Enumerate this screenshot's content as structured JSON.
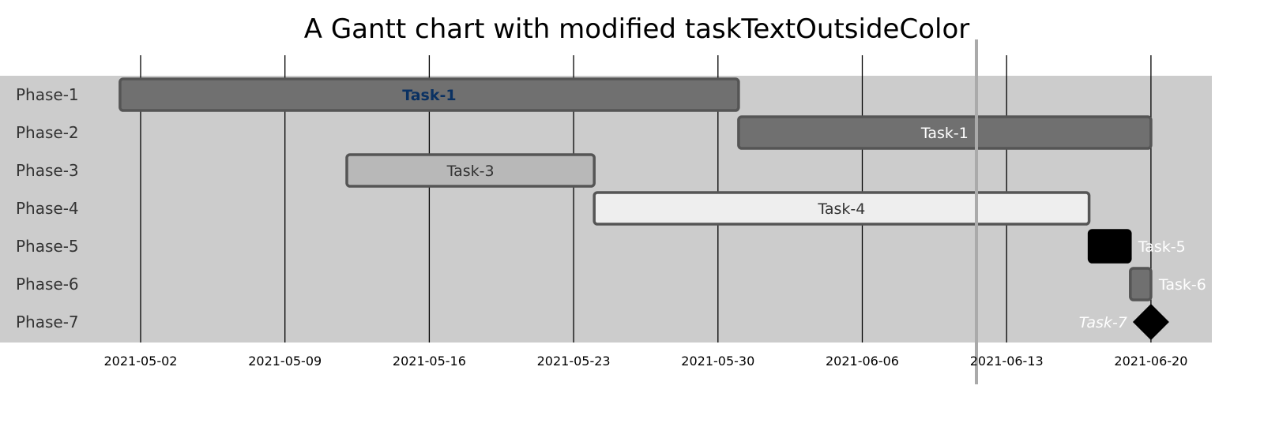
{
  "chart_data": {
    "type": "gantt",
    "title": "A Gantt chart with modified taskTextOutsideColor",
    "sections": [
      "Phase-1",
      "Phase-2",
      "Phase-3",
      "Phase-4",
      "Phase-5",
      "Phase-6",
      "Phase-7"
    ],
    "x_ticks": [
      "2021-05-02",
      "2021-05-09",
      "2021-05-16",
      "2021-05-23",
      "2021-05-30",
      "2021-06-06",
      "2021-06-13",
      "2021-06-20"
    ],
    "today_marker": "2021-06-11",
    "tasks": [
      {
        "section": "Phase-1",
        "label": "Task-1",
        "start": "2021-05-01",
        "end": "2021-05-31",
        "status": "active critical",
        "fill": "#707070",
        "text_color": "#0a3162",
        "label_placement": "inside"
      },
      {
        "section": "Phase-2",
        "label": "Task-1",
        "start": "2021-05-31",
        "end": "2021-06-20",
        "status": "done critical",
        "fill": "#707070",
        "text_color": "#ffffff",
        "label_placement": "inside"
      },
      {
        "section": "Phase-3",
        "label": "Task-3",
        "start": "2021-05-12",
        "end": "2021-05-24",
        "status": "done",
        "fill": "#b8b8b8",
        "text_color": "#333333",
        "label_placement": "inside"
      },
      {
        "section": "Phase-4",
        "label": "Task-4",
        "start": "2021-05-24",
        "end": "2021-06-17",
        "status": "active",
        "fill": "#eeeeee",
        "text_color": "#333333",
        "label_placement": "inside"
      },
      {
        "section": "Phase-5",
        "label": "Task-5",
        "start": "2021-06-17",
        "end": "2021-06-19",
        "status": "default",
        "fill": "#000000",
        "text_color": "#ffffff",
        "label_placement": "outside"
      },
      {
        "section": "Phase-6",
        "label": "Task-6",
        "start": "2021-06-19",
        "end": "2021-06-20",
        "status": "done",
        "fill": "#707070",
        "text_color": "#ffffff",
        "label_placement": "outside"
      },
      {
        "section": "Phase-7",
        "label": "Task-7",
        "start": "2021-06-20",
        "end": "2021-06-20",
        "status": "milestone",
        "fill": "#000000",
        "text_color": "#ffffff",
        "label_placement": "outside-left"
      }
    ]
  }
}
